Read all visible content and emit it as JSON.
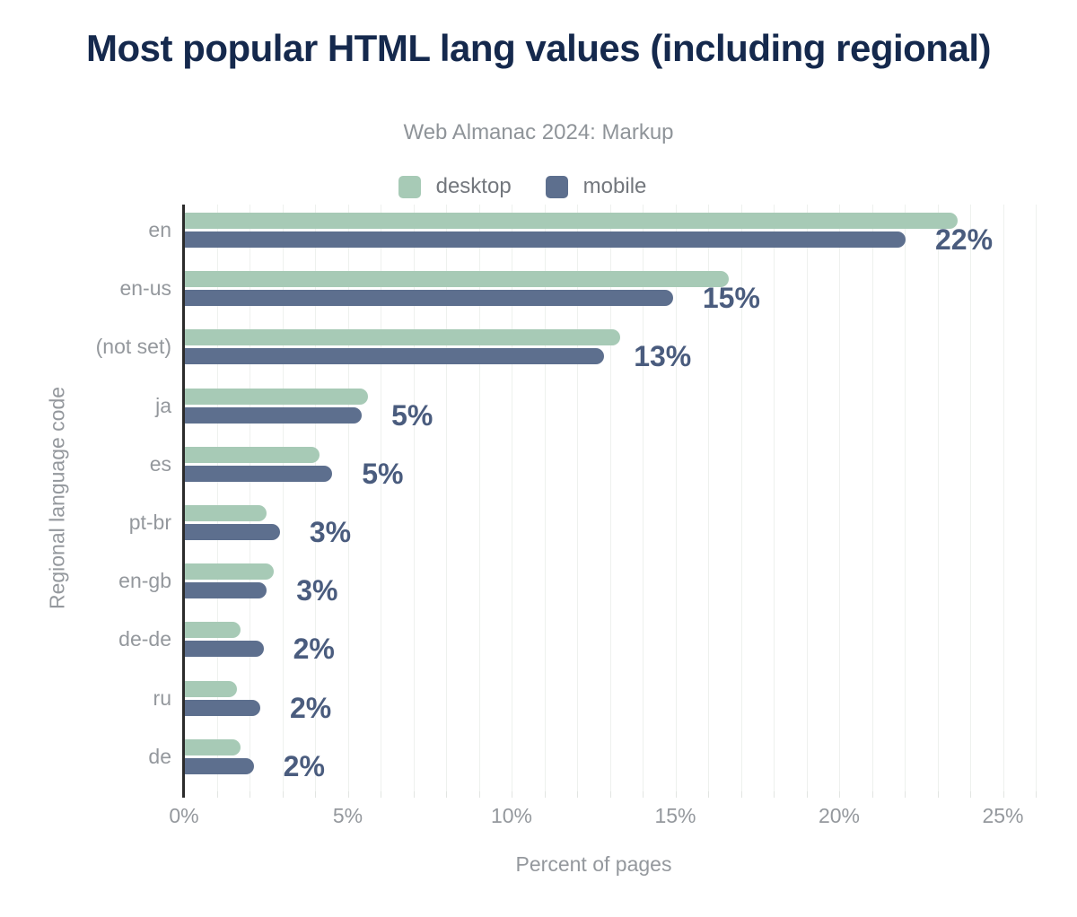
{
  "header": {
    "title": "Most popular HTML lang values (including regional)",
    "subtitle": "Web Almanac 2024: Markup"
  },
  "legend": {
    "position": "top",
    "items": [
      {
        "label": "desktop",
        "color": "#a7cab6"
      },
      {
        "label": "mobile",
        "color": "#5d6f8e"
      }
    ]
  },
  "axes": {
    "x_title": "Percent of pages",
    "y_title": "Regional language code",
    "x_tick_labels": [
      "0%",
      "5%",
      "10%",
      "15%",
      "20%",
      "25%"
    ]
  },
  "colors": {
    "background": "#ffffff",
    "title_text": "#15294d",
    "subtitle_text": "#8f9499",
    "axis_text": "#94989d",
    "legend_text": "#73777d",
    "gridline": "#eef1ee",
    "tick": "#e2e5e2",
    "axis_spine": "#2b2b2b",
    "desktop_bar": "#a7cab6",
    "mobile_bar": "#5d6f8e",
    "value_label_text": "#4a5c7e"
  },
  "chart_data": {
    "type": "bar",
    "orientation": "horizontal",
    "title": "Most popular HTML lang values (including regional)",
    "subtitle": "Web Almanac 2024: Markup",
    "xlabel": "Percent of pages",
    "ylabel": "Regional language code",
    "xlim": [
      0,
      26
    ],
    "x_tick_step": 5,
    "grid_step": 1,
    "grid": "on",
    "legend_position": "top",
    "categories": [
      "en",
      "en-us",
      "(not set)",
      "ja",
      "es",
      "pt-br",
      "en-gb",
      "de-de",
      "ru",
      "de"
    ],
    "series": [
      {
        "name": "desktop",
        "color": "#a7cab6",
        "values": [
          23.6,
          16.6,
          13.3,
          5.6,
          4.1,
          2.5,
          2.7,
          1.7,
          1.6,
          1.7
        ]
      },
      {
        "name": "mobile",
        "color": "#5d6f8e",
        "values": [
          22.0,
          14.9,
          12.8,
          5.4,
          4.5,
          2.9,
          2.5,
          2.4,
          2.3,
          2.1
        ]
      }
    ],
    "value_labels": [
      "22%",
      "15%",
      "13%",
      "5%",
      "5%",
      "3%",
      "3%",
      "2%",
      "2%",
      "2%"
    ],
    "value_labels_follow_series": "mobile"
  }
}
